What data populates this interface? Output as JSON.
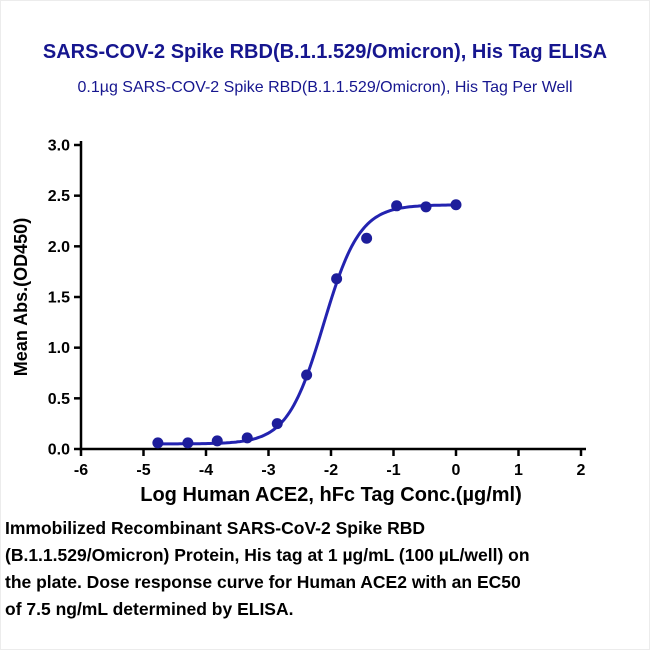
{
  "chart_data": {
    "type": "scatter",
    "title": "SARS-COV-2 Spike RBD(B.1.1.529/Omicron), His Tag ELISA",
    "subtitle": "0.1µg SARS-COV-2 Spike RBD(B.1.1.529/Omicron), His Tag Per Well",
    "xlabel": "Log Human ACE2, hFc Tag Conc.(µg/ml)",
    "ylabel": "Mean Abs.(OD450)",
    "xlim": [
      -6,
      2
    ],
    "ylim": [
      0,
      3
    ],
    "x_ticks": [
      -6,
      -5,
      -4,
      -3,
      -2,
      -1,
      0,
      1,
      2
    ],
    "y_ticks": [
      0,
      0.5,
      1,
      1.5,
      2,
      2.5,
      3
    ],
    "grid": false,
    "legend": false,
    "series": [
      {
        "name": "Human ACE2, hFc Tag",
        "x": [
          -4.77,
          -4.29,
          -3.82,
          -3.34,
          -2.86,
          -2.39,
          -1.91,
          -1.43,
          -0.95,
          -0.48,
          0
        ],
        "y": [
          0.06,
          0.06,
          0.08,
          0.11,
          0.25,
          0.73,
          1.68,
          2.08,
          2.4,
          2.39,
          2.41
        ]
      }
    ],
    "fit_curve": {
      "model": "4PL",
      "bottom": 0.05,
      "top": 2.41,
      "log_ec50": -2.12,
      "hill_slope": 1.5,
      "ec50_label": "7.5 ng/mL"
    },
    "colors": {
      "title": "#16168f",
      "curve": "#2323b0",
      "points": "#1d1d9b",
      "axis": "#000000"
    }
  },
  "caption": {
    "lines": [
      "Immobilized Recombinant SARS-CoV-2 Spike RBD",
      "(B.1.1.529/Omicron) Protein, His tag at 1 µg/mL (100 µL/well) on",
      "the plate. Dose response curve for Human ACE2 with an EC50",
      "of 7.5 ng/mL determined by ELISA."
    ]
  }
}
